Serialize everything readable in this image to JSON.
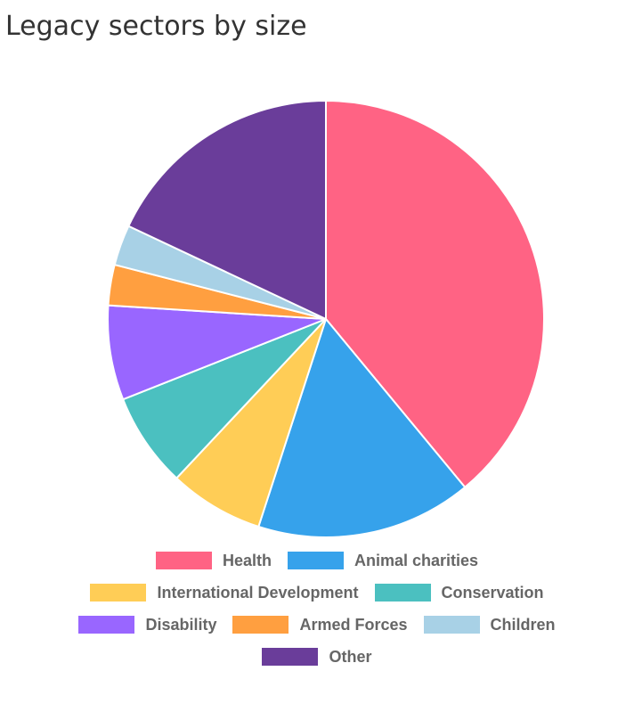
{
  "chart_data": {
    "type": "pie",
    "title": "Legacy sectors by size",
    "categories": [
      "Health",
      "Animal charities",
      "International Development",
      "Conservation",
      "Disability",
      "Armed Forces",
      "Children",
      "Other"
    ],
    "values": [
      39,
      16,
      7,
      7,
      7,
      3,
      3,
      18
    ],
    "colors": [
      "#ff6384",
      "#36a2eb",
      "#ffcd56",
      "#4bc0c0",
      "#9966ff",
      "#ff9f40",
      "#a8d1e6",
      "#6a3d9a"
    ],
    "legend_position": "bottom"
  }
}
